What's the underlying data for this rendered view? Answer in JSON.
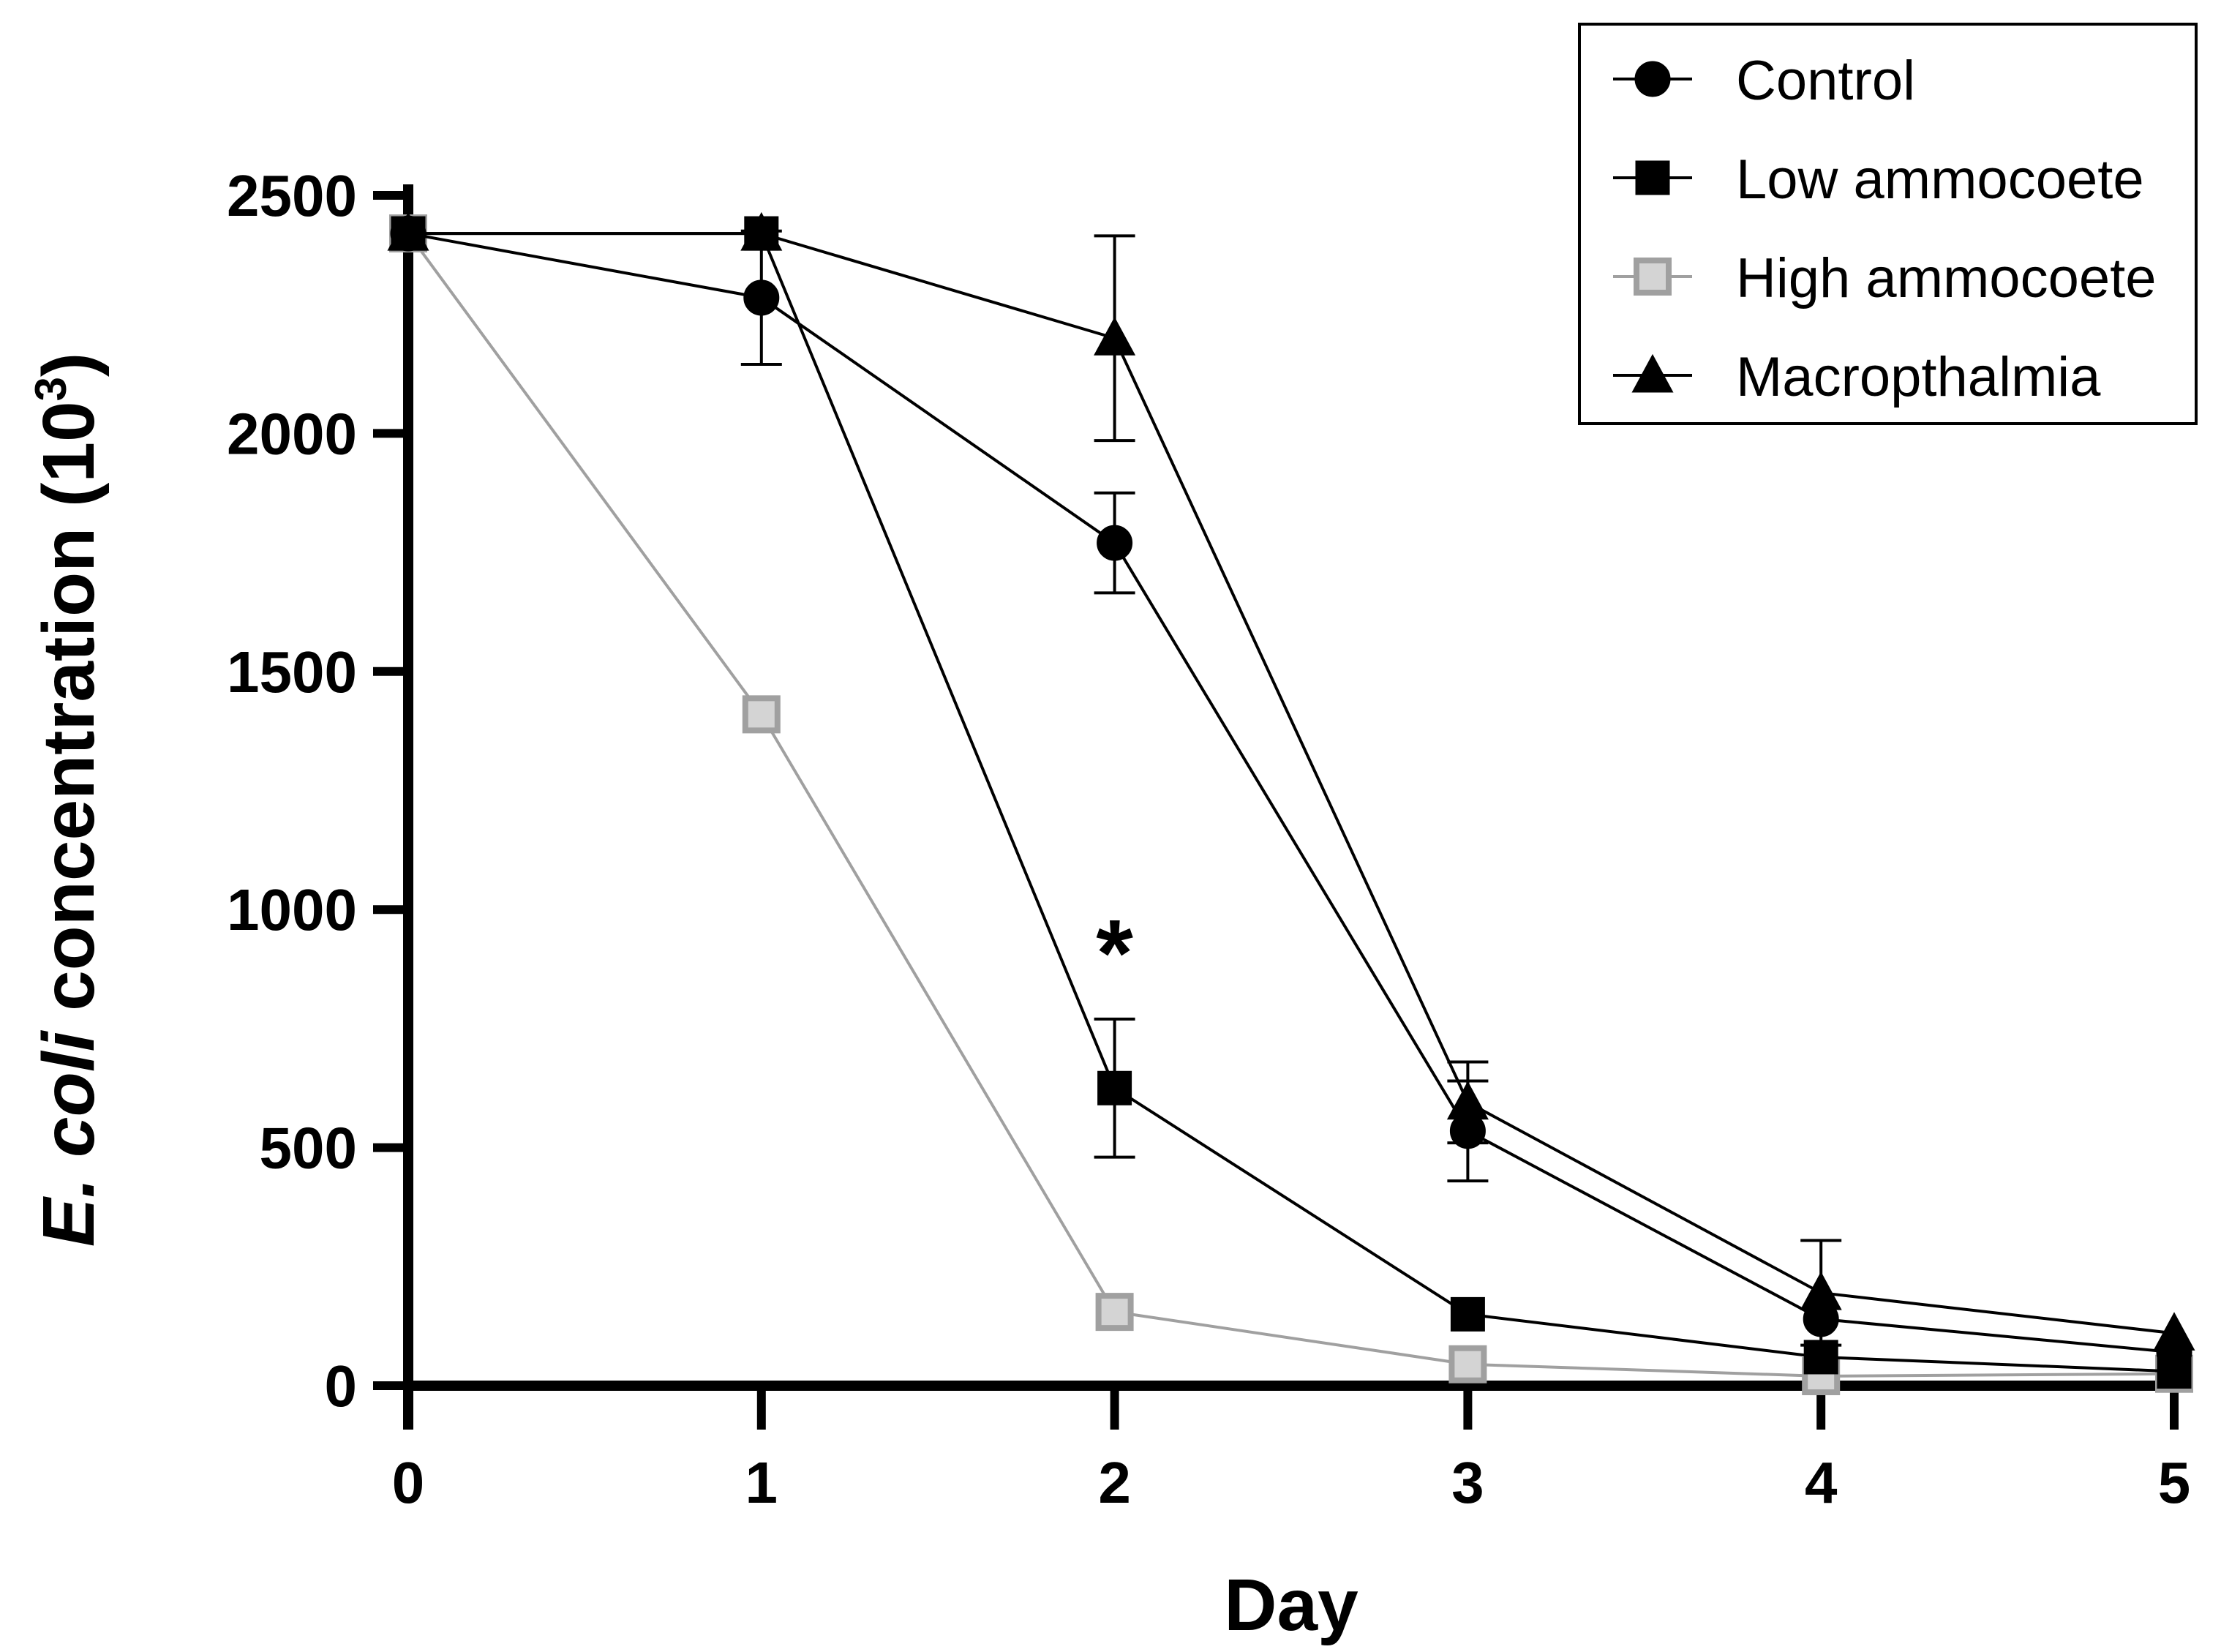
{
  "chart_data": {
    "type": "line",
    "title": "",
    "xlabel": "Day",
    "ylabel_italic": "E. coli",
    "ylabel_rest": " concentration (10",
    "ylabel_sup": "3",
    "ylabel_close": ")",
    "xlim": [
      0,
      5
    ],
    "ylim": [
      0,
      2500
    ],
    "xticks": [
      0,
      1,
      2,
      3,
      4,
      5
    ],
    "yticks": [
      0,
      500,
      1000,
      1500,
      2000,
      2500
    ],
    "x": [
      0,
      1,
      2,
      3,
      4,
      5
    ],
    "legend_position": "top-right",
    "series": [
      {
        "name": "Control",
        "marker": "circle",
        "color": "#000000",
        "fill": "#000000",
        "values": [
          2420,
          2285,
          1770,
          535,
          140,
          70
        ],
        "error": [
          0,
          140,
          105,
          105,
          0,
          0
        ]
      },
      {
        "name": "Low ammocoete",
        "marker": "square",
        "color": "#000000",
        "fill": "#000000",
        "values": [
          2420,
          2420,
          625,
          150,
          60,
          30
        ],
        "error": [
          0,
          0,
          145,
          0,
          0,
          0
        ]
      },
      {
        "name": "High ammocoete",
        "marker": "square",
        "color": "#a0a0a0",
        "fill": "#d4d4d4",
        "values": [
          2420,
          1410,
          155,
          45,
          20,
          25
        ],
        "error": [
          0,
          0,
          0,
          0,
          0,
          0
        ]
      },
      {
        "name": "Macropthalmia",
        "marker": "triangle",
        "color": "#000000",
        "fill": "#000000",
        "values": [
          2420,
          2420,
          2200,
          595,
          195,
          110
        ],
        "error": [
          0,
          0,
          215,
          85,
          110,
          0
        ]
      }
    ],
    "annotations": [
      {
        "text": "*",
        "x": 2,
        "y": 975
      }
    ]
  }
}
